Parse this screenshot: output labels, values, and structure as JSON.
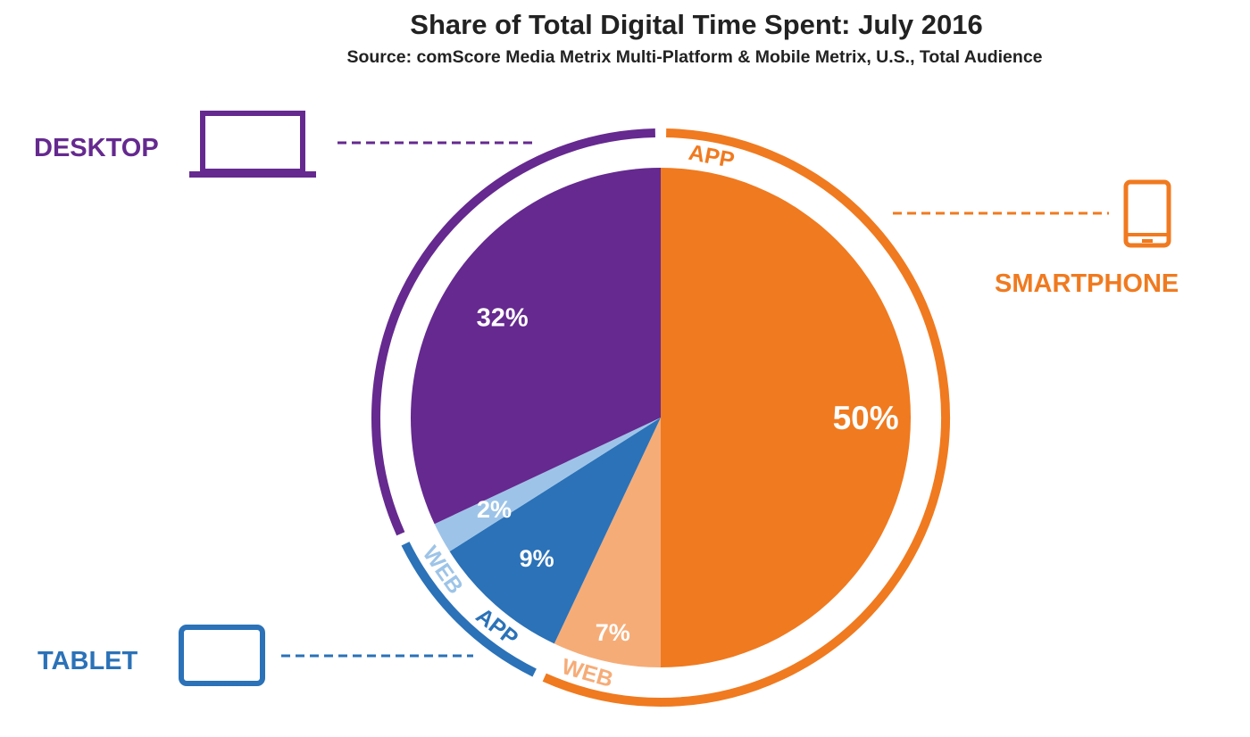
{
  "chart_data": {
    "type": "pie",
    "title": "Share of Total Digital Time Spent: July 2016",
    "subtitle": "Source: comScore Media Metrix Multi-Platform & Mobile Metrix, U.S., Total Audience",
    "slices": [
      {
        "group": "SMARTPHONE",
        "name": "APP",
        "value": 50,
        "label": "50%",
        "color": "#F07A1F"
      },
      {
        "group": "SMARTPHONE",
        "name": "WEB",
        "value": 7,
        "label": "7%",
        "color": "#F6AC77"
      },
      {
        "group": "TABLET",
        "name": "APP",
        "value": 9,
        "label": "9%",
        "color": "#2B72B8"
      },
      {
        "group": "TABLET",
        "name": "WEB",
        "value": 2,
        "label": "2%",
        "color": "#9DC4E8"
      },
      {
        "group": "DESKTOP",
        "name": "",
        "value": 32,
        "label": "32%",
        "color": "#65298F"
      }
    ],
    "groups": [
      {
        "name": "DESKTOP",
        "color": "#65298F",
        "icon": "laptop-icon"
      },
      {
        "name": "SMARTPHONE",
        "color": "#F07A1F",
        "icon": "smartphone-icon"
      },
      {
        "name": "TABLET",
        "color": "#2B72B8",
        "icon": "tablet-icon"
      }
    ]
  }
}
